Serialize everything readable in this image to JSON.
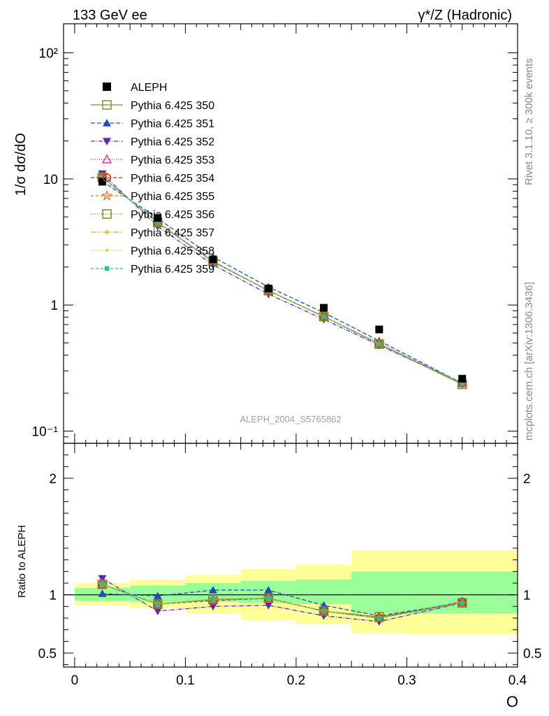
{
  "header": {
    "left": "133 GeV ee",
    "right": "γ*/Z (Hadronic)"
  },
  "side_label_top": "Rivet 3.1.10, ≥ 300k events",
  "side_label_bottom": "mcplots.cern.ch [arXiv:1306.3436]",
  "watermark": "ALEPH_2004_S5765862",
  "colors": {
    "data": "#000000",
    "band_inner": "#99ff99",
    "band_outer": "#ffff99"
  },
  "legend": [
    {
      "label": "ALEPH",
      "color": "#000000",
      "marker": "square-filled",
      "dash": "none"
    },
    {
      "label": "Pythia 6.425 350",
      "color": "#8b8b22",
      "marker": "square-open",
      "dash": "solid"
    },
    {
      "label": "Pythia 6.425 351",
      "color": "#1f4fb8",
      "marker": "triangle-up-filled",
      "dash": "6,3"
    },
    {
      "label": "Pythia 6.425 352",
      "color": "#5a2ab8",
      "marker": "triangle-down-filled",
      "dash": "6,2,1,2"
    },
    {
      "label": "Pythia 6.425 353",
      "color": "#d02a9a",
      "marker": "triangle-up-open",
      "dash": "1,2"
    },
    {
      "label": "Pythia 6.425 354",
      "color": "#dd1f1f",
      "marker": "circle-open",
      "dash": "5,3"
    },
    {
      "label": "Pythia 6.425 355",
      "color": "#ee6a1a",
      "marker": "star-open",
      "dash": "4,3"
    },
    {
      "label": "Pythia 6.425 356",
      "color": "#7a8f1a",
      "marker": "square-open",
      "dash": "1,2"
    },
    {
      "label": "Pythia 6.425 357",
      "color": "#d8b81a",
      "marker": "small-star",
      "dash": "8,3,2,3"
    },
    {
      "label": "Pythia 6.425 358",
      "color": "#c8d81a",
      "marker": "dot",
      "dash": "1,2"
    },
    {
      "label": "Pythia 6.425 359",
      "color": "#22c48a",
      "marker": "square-small",
      "dash": "4,3"
    }
  ],
  "chart_data": [
    {
      "type": "scatter",
      "panel": "main",
      "ylabel": "1/σ dσ/dO",
      "yscale": "log",
      "ylim": [
        0.08,
        170
      ],
      "xlim": [
        -0.01,
        0.4
      ],
      "ytick_values": [
        0.1,
        1,
        10,
        100
      ],
      "ytick_labels": [
        "10⁻¹",
        "1",
        "10",
        "10²"
      ],
      "x": [
        0.025,
        0.075,
        0.125,
        0.175,
        0.225,
        0.275,
        0.35
      ],
      "data": [
        9.5,
        4.9,
        2.3,
        1.35,
        0.95,
        0.64,
        0.26
      ],
      "series": [
        {
          "name": "Pythia 6.425 350",
          "values": [
            10.3,
            4.5,
            2.22,
            1.3,
            0.81,
            0.49,
            0.235
          ]
        },
        {
          "name": "Pythia 6.425 351",
          "values": [
            9.6,
            4.85,
            2.4,
            1.39,
            0.87,
            0.52,
            0.24
          ]
        },
        {
          "name": "Pythia 6.425 352",
          "values": [
            11.0,
            4.2,
            2.08,
            1.22,
            0.77,
            0.48,
            0.24
          ]
        },
        {
          "name": "Pythia 6.425 353",
          "values": [
            10.3,
            4.5,
            2.2,
            1.3,
            0.81,
            0.5,
            0.24
          ]
        },
        {
          "name": "Pythia 6.425 354",
          "values": [
            10.3,
            4.5,
            2.2,
            1.3,
            0.81,
            0.49,
            0.24
          ]
        },
        {
          "name": "Pythia 6.425 355",
          "values": [
            10.3,
            4.5,
            2.22,
            1.3,
            0.81,
            0.49,
            0.24
          ]
        },
        {
          "name": "Pythia 6.425 356",
          "values": [
            10.3,
            4.5,
            2.22,
            1.3,
            0.81,
            0.49,
            0.235
          ]
        },
        {
          "name": "Pythia 6.425 357",
          "values": [
            10.3,
            4.5,
            2.22,
            1.3,
            0.81,
            0.49,
            0.24
          ]
        },
        {
          "name": "Pythia 6.425 358",
          "values": [
            10.3,
            4.5,
            2.22,
            1.3,
            0.81,
            0.49,
            0.24
          ]
        },
        {
          "name": "Pythia 6.425 359",
          "values": [
            10.3,
            4.5,
            2.22,
            1.3,
            0.81,
            0.49,
            0.24
          ]
        }
      ]
    },
    {
      "type": "line",
      "panel": "ratio",
      "ylabel": "Ratio to ALEPH",
      "xlabel": "O",
      "ylim": [
        0.38,
        2.3
      ],
      "xlim": [
        -0.01,
        0.4
      ],
      "ytick_values": [
        0.5,
        1,
        2
      ],
      "ytick_labels": [
        "0.5",
        "1",
        "2"
      ],
      "xtick_values": [
        0,
        0.1,
        0.2,
        0.3,
        0.4
      ],
      "xtick_labels": [
        "0",
        "0.1",
        "0.2",
        "0.3",
        "0.4"
      ],
      "x": [
        0.025,
        0.075,
        0.125,
        0.175,
        0.225,
        0.275,
        0.35
      ],
      "bin_edges": [
        0,
        0.05,
        0.1,
        0.15,
        0.2,
        0.25,
        0.3,
        0.4
      ],
      "band_inner": [
        [
          0.95,
          1.06
        ],
        [
          0.94,
          1.08
        ],
        [
          0.94,
          1.1
        ],
        [
          0.93,
          1.12
        ],
        [
          0.92,
          1.13
        ],
        [
          0.84,
          1.2
        ],
        [
          0.84,
          1.2
        ]
      ],
      "band_outer": [
        [
          0.91,
          1.1
        ],
        [
          0.89,
          1.13
        ],
        [
          0.84,
          1.17
        ],
        [
          0.78,
          1.22
        ],
        [
          0.75,
          1.26
        ],
        [
          0.67,
          1.38
        ],
        [
          0.66,
          1.38
        ]
      ],
      "series": [
        {
          "name": "Pythia 6.425 350",
          "values": [
            1.09,
            0.92,
            0.96,
            0.97,
            0.86,
            0.81,
            0.93
          ]
        },
        {
          "name": "Pythia 6.425 351",
          "values": [
            1.01,
            0.99,
            1.04,
            1.04,
            0.91,
            0.82,
            0.93
          ]
        },
        {
          "name": "Pythia 6.425 352",
          "values": [
            1.14,
            0.86,
            0.9,
            0.91,
            0.82,
            0.77,
            0.93
          ]
        },
        {
          "name": "Pythia 6.425 353",
          "values": [
            1.09,
            0.92,
            0.96,
            0.97,
            0.86,
            0.8,
            0.94
          ]
        },
        {
          "name": "Pythia 6.425 354",
          "values": [
            1.09,
            0.92,
            0.95,
            0.97,
            0.86,
            0.8,
            0.94
          ]
        },
        {
          "name": "Pythia 6.425 355",
          "values": [
            1.09,
            0.92,
            0.96,
            0.97,
            0.86,
            0.8,
            0.93
          ]
        },
        {
          "name": "Pythia 6.425 356",
          "values": [
            1.09,
            0.92,
            0.96,
            0.97,
            0.86,
            0.81,
            0.93
          ]
        },
        {
          "name": "Pythia 6.425 357",
          "values": [
            1.09,
            0.92,
            0.96,
            0.97,
            0.86,
            0.8,
            0.93
          ]
        },
        {
          "name": "Pythia 6.425 358",
          "values": [
            1.09,
            0.92,
            0.96,
            0.97,
            0.86,
            0.8,
            0.93
          ]
        },
        {
          "name": "Pythia 6.425 359",
          "values": [
            1.09,
            0.92,
            0.96,
            0.97,
            0.86,
            0.8,
            0.93
          ]
        }
      ]
    }
  ]
}
